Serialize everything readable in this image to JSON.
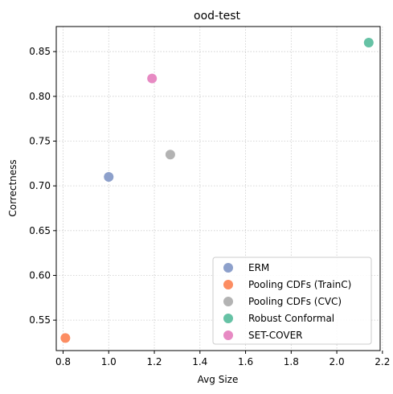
{
  "chart_data": {
    "type": "scatter",
    "title": "ood-test",
    "xlabel": "Avg Size",
    "ylabel": "Correctness",
    "xlim": [
      0.77,
      2.19
    ],
    "ylim": [
      0.516,
      0.878
    ],
    "xticks": [
      0.8,
      1.0,
      1.2,
      1.4,
      1.6,
      1.8,
      2.0,
      2.2
    ],
    "xtick_labels": [
      "0.8",
      "1.0",
      "1.2",
      "1.4",
      "1.6",
      "1.8",
      "2.0",
      "2.2"
    ],
    "yticks": [
      0.55,
      0.6,
      0.65,
      0.7,
      0.75,
      0.8,
      0.85
    ],
    "ytick_labels": [
      "0.55",
      "0.60",
      "0.65",
      "0.70",
      "0.75",
      "0.80",
      "0.85"
    ],
    "grid": true,
    "legend_position": "lower-right",
    "series": [
      {
        "name": "ERM",
        "color": "#8da0cb",
        "x": 1.0,
        "y": 0.71
      },
      {
        "name": "Pooling CDFs (TrainC)",
        "color": "#fc8d62",
        "x": 0.81,
        "y": 0.53
      },
      {
        "name": "Pooling CDFs (CVC)",
        "color": "#b3b3b3",
        "x": 1.27,
        "y": 0.735
      },
      {
        "name": "Robust Conformal",
        "color": "#66c2a5",
        "x": 2.14,
        "y": 0.86
      },
      {
        "name": "SET-COVER",
        "color": "#e78ac3",
        "x": 1.19,
        "y": 0.82
      }
    ]
  }
}
